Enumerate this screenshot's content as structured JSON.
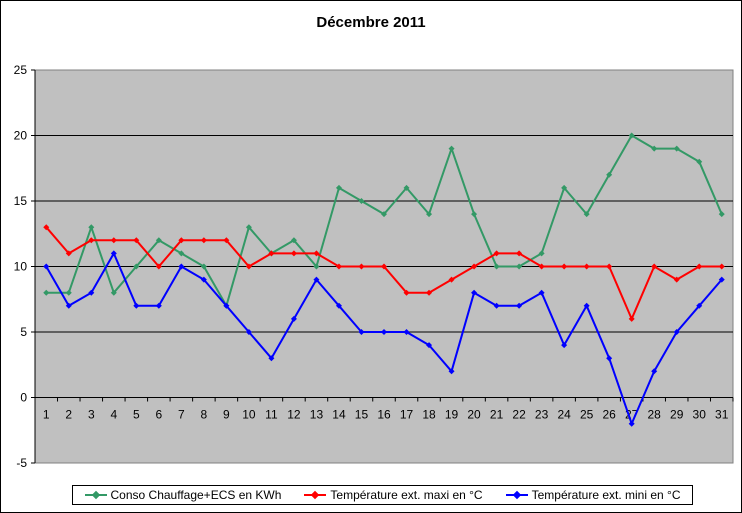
{
  "chart_data": {
    "type": "line",
    "title": "Décembre 2011",
    "xlabel": "",
    "ylabel": "",
    "ylim": [
      -5,
      25
    ],
    "yticks": [
      -5,
      0,
      5,
      10,
      15,
      20,
      25
    ],
    "grid": true,
    "legend_position": "bottom",
    "categories": [
      "1",
      "2",
      "3",
      "4",
      "5",
      "6",
      "7",
      "8",
      "9",
      "10",
      "11",
      "12",
      "13",
      "14",
      "15",
      "16",
      "17",
      "18",
      "19",
      "20",
      "21",
      "22",
      "23",
      "24",
      "25",
      "26",
      "27",
      "28",
      "29",
      "30",
      "31"
    ],
    "series": [
      {
        "name": "Conso Chauffage+ECS en KWh",
        "color": "#339966",
        "values": [
          8,
          8,
          13,
          8,
          10,
          12,
          11,
          10,
          7,
          13,
          11,
          12,
          10,
          16,
          15,
          14,
          16,
          14,
          19,
          14,
          10,
          10,
          11,
          16,
          14,
          17,
          20,
          19,
          19,
          18,
          14
        ]
      },
      {
        "name": "Température ext. maxi en °C",
        "color": "#ff0000",
        "values": [
          13,
          11,
          12,
          12,
          12,
          10,
          12,
          12,
          12,
          10,
          11,
          11,
          11,
          10,
          10,
          10,
          8,
          8,
          9,
          10,
          11,
          11,
          10,
          10,
          10,
          10,
          6,
          10,
          9,
          10,
          10
        ]
      },
      {
        "name": "Température ext. mini en °C",
        "color": "#0000ff",
        "values": [
          10,
          7,
          8,
          11,
          7,
          7,
          10,
          9,
          7,
          5,
          3,
          6,
          9,
          7,
          5,
          5,
          5,
          4,
          2,
          8,
          7,
          7,
          8,
          4,
          7,
          3,
          -2,
          2,
          5,
          7,
          9
        ]
      }
    ]
  }
}
